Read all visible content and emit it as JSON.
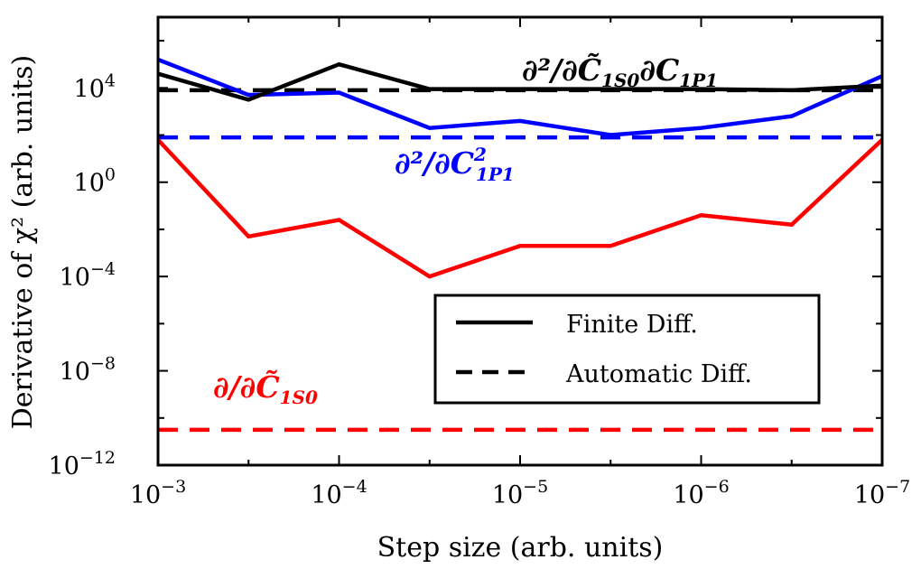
{
  "chart_data": {
    "type": "line",
    "xscale": "log",
    "yscale": "log",
    "x_exponents": [
      -3,
      -3.5,
      -4,
      -4.5,
      -5,
      -5.5,
      -6,
      -6.5,
      -7
    ],
    "xlim_exp": [
      -3,
      -7
    ],
    "ylim_exp": [
      -12,
      7
    ],
    "xlabel": "Step size (arb. units)",
    "ylabel": "Derivative of χ² (arb. units)",
    "x_ticks": [
      {
        "base": "10",
        "exp": "−3",
        "value_exp": -3
      },
      {
        "base": "10",
        "exp": "−4",
        "value_exp": -4
      },
      {
        "base": "10",
        "exp": "−5",
        "value_exp": -5
      },
      {
        "base": "10",
        "exp": "−6",
        "value_exp": -6
      },
      {
        "base": "10",
        "exp": "−7",
        "value_exp": -7
      }
    ],
    "y_ticks": [
      {
        "base": "10",
        "exp": "−12",
        "value_exp": -12
      },
      {
        "base": "10",
        "exp": "−8",
        "value_exp": -8
      },
      {
        "base": "10",
        "exp": "−4",
        "value_exp": -4
      },
      {
        "base": "10",
        "exp": "0",
        "value_exp": 0
      },
      {
        "base": "10",
        "exp": "4",
        "value_exp": 4
      }
    ],
    "series": [
      {
        "name": "∂/∂C̃1S0",
        "color": "#ff0000",
        "finite_diff_log10": [
          1.8,
          -2.3,
          -1.6,
          -4.0,
          -2.7,
          -2.7,
          -1.4,
          -1.8,
          1.8
        ],
        "automatic_diff_log10": -10.5
      },
      {
        "name": "∂²/∂C²1P1",
        "color": "#0000ff",
        "finite_diff_log10": [
          5.2,
          3.7,
          3.8,
          2.3,
          2.6,
          2.0,
          2.3,
          2.8,
          4.5
        ],
        "automatic_diff_log10": 1.9
      },
      {
        "name": "∂²/∂C̃1S0∂C1P1",
        "color": "#000000",
        "finite_diff_log10": [
          4.6,
          3.5,
          5.0,
          3.95,
          3.95,
          3.95,
          3.95,
          3.9,
          4.1
        ],
        "automatic_diff_log10": 3.9
      }
    ],
    "legend": {
      "placement": "lower-right",
      "entries": [
        {
          "label": "Finite Diff.",
          "style": "solid"
        },
        {
          "label": "Automatic Diff.",
          "style": "dashed"
        }
      ]
    },
    "annotations": {
      "red": {
        "prefix": "∂/∂",
        "sym": "C̃",
        "sub": "1S0"
      },
      "blue": {
        "prefix": "∂²/∂",
        "sym": "C",
        "sup": "2",
        "sub": "1P1"
      },
      "black": {
        "prefix": "∂²/∂",
        "sym1": "C̃",
        "sub1": "1S0",
        "mid": "∂",
        "sym2": "C",
        "sub2": "1P1"
      }
    }
  }
}
